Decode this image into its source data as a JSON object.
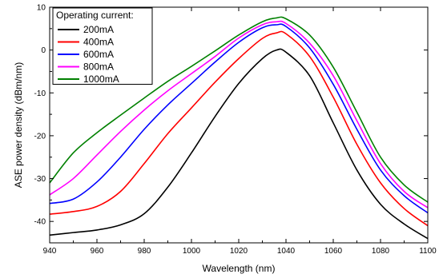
{
  "chart_data": {
    "type": "line",
    "title": "",
    "xlabel": "Wavelength (nm)",
    "ylabel": "ASE power density (dBm/nm)",
    "xlim": [
      940,
      1100
    ],
    "ylim": [
      -45,
      10
    ],
    "xticks": [
      940,
      960,
      980,
      1000,
      1020,
      1040,
      1060,
      1080,
      1100
    ],
    "yticks": [
      -40,
      -30,
      -20,
      -10,
      0,
      10
    ],
    "grid": false,
    "legend": {
      "title": "Operating current:",
      "placement": "top-left"
    },
    "x": [
      940,
      950,
      960,
      970,
      980,
      990,
      1000,
      1010,
      1020,
      1030,
      1036,
      1040,
      1050,
      1060,
      1070,
      1080,
      1090,
      1100
    ],
    "series": [
      {
        "name": "200mA",
        "color": "#000000",
        "values": [
          -43.2,
          -42.6,
          -42.0,
          -40.8,
          -38.2,
          -32.0,
          -24.0,
          -15.5,
          -7.8,
          -2.0,
          0.0,
          -0.5,
          -6.0,
          -17.0,
          -28.0,
          -36.0,
          -40.6,
          -44.0
        ]
      },
      {
        "name": "400mA",
        "color": "#ff0000",
        "values": [
          -38.3,
          -37.7,
          -36.5,
          -33.0,
          -26.5,
          -19.5,
          -13.5,
          -7.5,
          -2.0,
          2.7,
          4.0,
          3.8,
          -1.5,
          -11.0,
          -22.0,
          -31.0,
          -37.0,
          -41.0
        ]
      },
      {
        "name": "600mA",
        "color": "#0000ff",
        "values": [
          -35.8,
          -34.8,
          -30.8,
          -25.0,
          -18.5,
          -12.8,
          -7.8,
          -2.8,
          1.8,
          5.2,
          5.9,
          5.5,
          0.5,
          -8.0,
          -18.5,
          -28.0,
          -34.0,
          -38.0
        ]
      },
      {
        "name": "800mA",
        "color": "#ff00ff",
        "values": [
          -33.8,
          -30.0,
          -24.5,
          -19.0,
          -14.0,
          -9.5,
          -5.5,
          -1.5,
          2.8,
          5.9,
          6.6,
          6.2,
          1.6,
          -6.0,
          -16.5,
          -26.5,
          -33.0,
          -36.8
        ]
      },
      {
        "name": "1000mA",
        "color": "#008000",
        "values": [
          -31.0,
          -24.0,
          -19.3,
          -15.2,
          -11.2,
          -7.3,
          -3.8,
          -0.2,
          3.5,
          6.6,
          7.5,
          7.3,
          3.5,
          -4.0,
          -14.5,
          -25.0,
          -31.5,
          -35.5
        ]
      }
    ]
  }
}
